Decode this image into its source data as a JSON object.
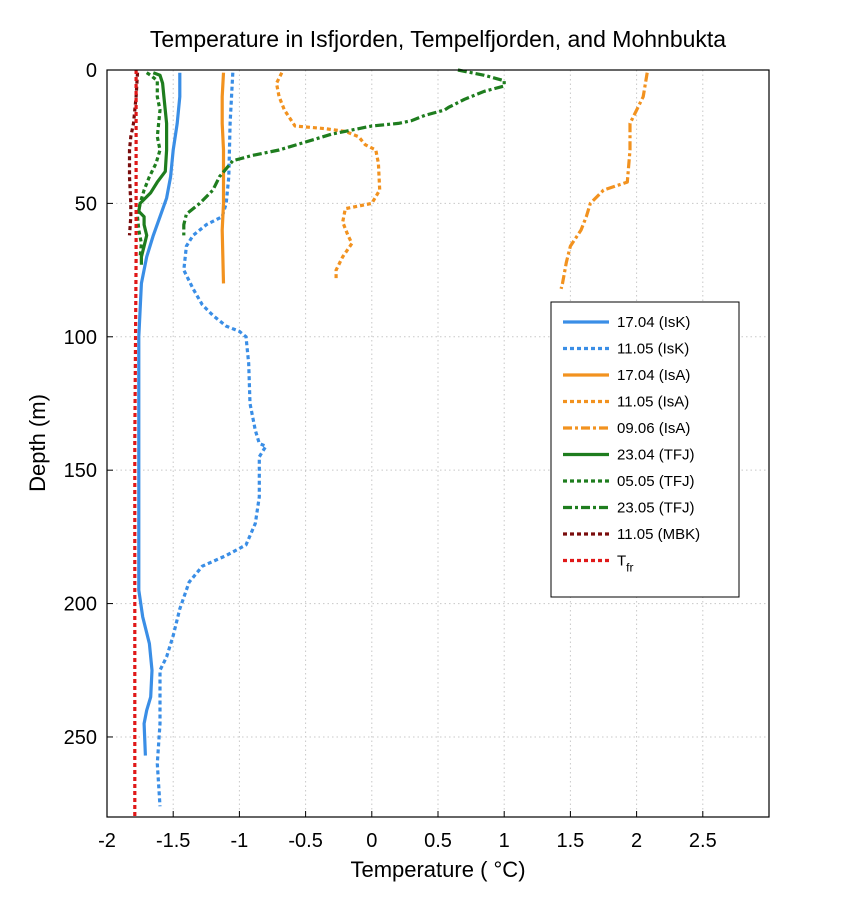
{
  "chart_data": {
    "type": "line",
    "title": "Temperature in Isfjorden, Tempelfjorden, and Mohnbukta",
    "xlabel": "Temperature ( °C)",
    "ylabel": "Depth (m)",
    "xlim": [
      -2,
      3
    ],
    "ylim": [
      0,
      280
    ],
    "y_inverted": true,
    "grid": true,
    "legend_position": "right",
    "x_ticks": [
      -2,
      -1.5,
      -1,
      -0.5,
      0,
      0.5,
      1,
      1.5,
      2,
      2.5
    ],
    "x_tick_labels": [
      "-2",
      "-1.5",
      "-1",
      "-0.5",
      "0",
      "0.5",
      "1",
      "1.5",
      "2",
      "2.5"
    ],
    "y_ticks": [
      0,
      50,
      100,
      150,
      200,
      250
    ],
    "y_tick_labels": [
      "0",
      "50",
      "100",
      "150",
      "200",
      "250"
    ],
    "series": [
      {
        "name": "17.04 (IsK)",
        "color": "#3a8ee6",
        "dash": "solid",
        "points": [
          [
            -1.45,
            1
          ],
          [
            -1.45,
            10
          ],
          [
            -1.47,
            20
          ],
          [
            -1.5,
            30
          ],
          [
            -1.52,
            40
          ],
          [
            -1.55,
            48
          ],
          [
            -1.6,
            55
          ],
          [
            -1.65,
            62
          ],
          [
            -1.7,
            70
          ],
          [
            -1.74,
            80
          ],
          [
            -1.75,
            90
          ],
          [
            -1.76,
            100
          ],
          [
            -1.76,
            120
          ],
          [
            -1.76,
            150
          ],
          [
            -1.76,
            180
          ],
          [
            -1.76,
            195
          ],
          [
            -1.73,
            205
          ],
          [
            -1.68,
            215
          ],
          [
            -1.66,
            225
          ],
          [
            -1.67,
            235
          ],
          [
            -1.7,
            240
          ],
          [
            -1.72,
            245
          ],
          [
            -1.71,
            257
          ]
        ]
      },
      {
        "name": "11.05 (IsK)",
        "color": "#3a8ee6",
        "dash": "dotted",
        "points": [
          [
            -1.05,
            1
          ],
          [
            -1.07,
            20
          ],
          [
            -1.08,
            40
          ],
          [
            -1.1,
            50
          ],
          [
            -1.13,
            55
          ],
          [
            -1.25,
            58
          ],
          [
            -1.35,
            62
          ],
          [
            -1.4,
            66
          ],
          [
            -1.42,
            75
          ],
          [
            -1.35,
            82
          ],
          [
            -1.28,
            88
          ],
          [
            -1.2,
            92
          ],
          [
            -1.1,
            96
          ],
          [
            -1.0,
            98
          ],
          [
            -0.95,
            100
          ],
          [
            -0.93,
            110
          ],
          [
            -0.92,
            125
          ],
          [
            -0.88,
            135
          ],
          [
            -0.85,
            140
          ],
          [
            -0.8,
            141
          ],
          [
            -0.85,
            145
          ],
          [
            -0.85,
            160
          ],
          [
            -0.88,
            170
          ],
          [
            -0.95,
            178
          ],
          [
            -1.1,
            182
          ],
          [
            -1.28,
            186
          ],
          [
            -1.38,
            192
          ],
          [
            -1.45,
            202
          ],
          [
            -1.5,
            212
          ],
          [
            -1.55,
            220
          ],
          [
            -1.6,
            225
          ],
          [
            -1.6,
            245
          ],
          [
            -1.62,
            260
          ],
          [
            -1.6,
            276
          ]
        ]
      },
      {
        "name": "17.04 (IsA)",
        "color": "#f2921f",
        "dash": "solid",
        "points": [
          [
            -1.12,
            1
          ],
          [
            -1.13,
            10
          ],
          [
            -1.13,
            20
          ],
          [
            -1.12,
            30
          ],
          [
            -1.12,
            50
          ],
          [
            -1.13,
            60
          ],
          [
            -1.12,
            80
          ]
        ]
      },
      {
        "name": "11.05 (IsA)",
        "color": "#f2921f",
        "dash": "dotted",
        "points": [
          [
            -0.68,
            1
          ],
          [
            -0.72,
            5
          ],
          [
            -0.7,
            10
          ],
          [
            -0.66,
            15
          ],
          [
            -0.62,
            18
          ],
          [
            -0.58,
            21
          ],
          [
            -0.35,
            22
          ],
          [
            -0.2,
            23
          ],
          [
            -0.1,
            25
          ],
          [
            -0.05,
            28
          ],
          [
            0.03,
            30
          ],
          [
            0.05,
            35
          ],
          [
            0.06,
            45
          ],
          [
            0.0,
            50
          ],
          [
            -0.2,
            52
          ],
          [
            -0.22,
            57
          ],
          [
            -0.18,
            62
          ],
          [
            -0.15,
            65
          ],
          [
            -0.22,
            70
          ],
          [
            -0.27,
            75
          ],
          [
            -0.27,
            78
          ]
        ]
      },
      {
        "name": "09.06 (IsA)",
        "color": "#f2921f",
        "dash": "dashdot",
        "points": [
          [
            2.08,
            1
          ],
          [
            2.05,
            10
          ],
          [
            1.98,
            17
          ],
          [
            1.95,
            20
          ],
          [
            1.95,
            30
          ],
          [
            1.93,
            42
          ],
          [
            1.75,
            45
          ],
          [
            1.65,
            50
          ],
          [
            1.62,
            55
          ],
          [
            1.58,
            60
          ],
          [
            1.5,
            66
          ],
          [
            1.47,
            72
          ],
          [
            1.44,
            80
          ],
          [
            1.43,
            82
          ]
        ]
      },
      {
        "name": "23.04 (TFJ)",
        "color": "#1e7d1e",
        "dash": "solid",
        "points": [
          [
            -1.65,
            1
          ],
          [
            -1.6,
            2
          ],
          [
            -1.58,
            5
          ],
          [
            -1.57,
            10
          ],
          [
            -1.55,
            20
          ],
          [
            -1.55,
            30
          ],
          [
            -1.56,
            38
          ],
          [
            -1.62,
            42
          ],
          [
            -1.67,
            46
          ],
          [
            -1.75,
            50
          ],
          [
            -1.76,
            53
          ],
          [
            -1.72,
            55
          ],
          [
            -1.72,
            58
          ],
          [
            -1.7,
            62
          ],
          [
            -1.72,
            66
          ],
          [
            -1.74,
            70
          ],
          [
            -1.74,
            73
          ]
        ]
      },
      {
        "name": "05.05 (TFJ)",
        "color": "#1e7d1e",
        "dash": "dotted",
        "points": [
          [
            -1.7,
            1
          ],
          [
            -1.67,
            2
          ],
          [
            -1.62,
            4
          ],
          [
            -1.62,
            10
          ],
          [
            -1.6,
            15
          ],
          [
            -1.62,
            25
          ],
          [
            -1.6,
            30
          ],
          [
            -1.63,
            35
          ],
          [
            -1.68,
            40
          ],
          [
            -1.72,
            45
          ],
          [
            -1.75,
            50
          ],
          [
            -1.77,
            55
          ],
          [
            -1.76,
            60
          ],
          [
            -1.74,
            65
          ],
          [
            -1.75,
            70
          ]
        ]
      },
      {
        "name": "23.05 (TFJ)",
        "color": "#1e7d1e",
        "dash": "dashdot",
        "points": [
          [
            0.65,
            0
          ],
          [
            0.85,
            2
          ],
          [
            1.0,
            4
          ],
          [
            1.0,
            6
          ],
          [
            0.85,
            8
          ],
          [
            0.7,
            11
          ],
          [
            0.62,
            13
          ],
          [
            0.58,
            14
          ],
          [
            0.55,
            15
          ],
          [
            0.4,
            17
          ],
          [
            0.3,
            19
          ],
          [
            0.2,
            20
          ],
          [
            0.0,
            21
          ],
          [
            -0.3,
            24
          ],
          [
            -0.5,
            27
          ],
          [
            -0.7,
            30
          ],
          [
            -0.9,
            32
          ],
          [
            -1.05,
            34
          ],
          [
            -1.1,
            37
          ],
          [
            -1.15,
            40
          ],
          [
            -1.2,
            45
          ],
          [
            -1.3,
            50
          ],
          [
            -1.4,
            54
          ],
          [
            -1.42,
            58
          ],
          [
            -1.42,
            62
          ]
        ]
      },
      {
        "name": "11.05 (MBK)",
        "color": "#7a0c0c",
        "dash": "dotted",
        "points": [
          [
            -1.77,
            1
          ],
          [
            -1.78,
            10
          ],
          [
            -1.8,
            20
          ],
          [
            -1.82,
            25
          ],
          [
            -1.83,
            30
          ],
          [
            -1.83,
            40
          ],
          [
            -1.82,
            50
          ],
          [
            -1.82,
            55
          ],
          [
            -1.83,
            62
          ]
        ]
      },
      {
        "name": "T_fr",
        "color": "#e01818",
        "dash": "dotted",
        "points": [
          [
            -1.78,
            0
          ],
          [
            -1.78,
            70
          ],
          [
            -1.79,
            140
          ],
          [
            -1.79,
            210
          ],
          [
            -1.79,
            280
          ]
        ]
      }
    ],
    "legend_labels": [
      {
        "label": "17.04 (IsK)"
      },
      {
        "label": "11.05 (IsK)"
      },
      {
        "label": "17.04 (IsA)"
      },
      {
        "label": "11.05 (IsA)"
      },
      {
        "label": "09.06 (IsA)"
      },
      {
        "label": "23.04 (TFJ)"
      },
      {
        "label": "05.05 (TFJ)"
      },
      {
        "label": "23.05 (TFJ)"
      },
      {
        "label": "11.05 (MBK)"
      },
      {
        "label": "T",
        "subscript": "fr"
      }
    ]
  }
}
